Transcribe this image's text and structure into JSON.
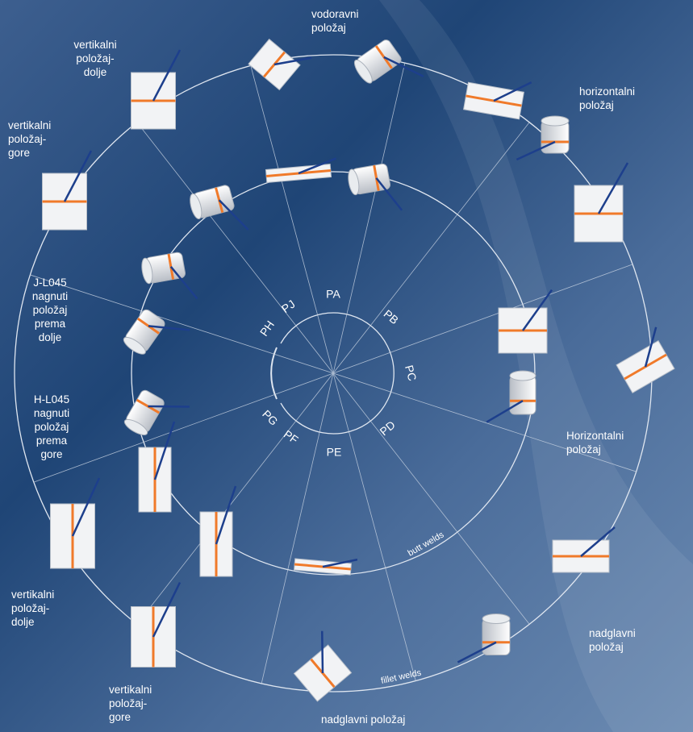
{
  "labels": [
    {
      "lines": [
        "vodoravni",
        "položaj"
      ]
    },
    {
      "lines": [
        "vertikalni",
        "položaj-",
        "dolje"
      ]
    },
    {
      "lines": [
        "horizontalni",
        "položaj"
      ]
    },
    {
      "lines": [
        "vertikalni",
        "položaj-",
        "gore"
      ]
    },
    {
      "lines": [
        "J-L045",
        "nagnuti",
        "položaj",
        "prema",
        "dolje"
      ]
    },
    {
      "lines": [
        "H-L045",
        "nagnuti",
        "položaj",
        "prema",
        "gore"
      ]
    },
    {
      "lines": [
        "Horizontalni",
        "položaj"
      ]
    },
    {
      "lines": [
        "vertikalni",
        "položaj-",
        "dolje"
      ]
    },
    {
      "lines": [
        "vertikalni",
        "položaj-",
        "gore"
      ]
    },
    {
      "lines": [
        "nadglavni položaj"
      ]
    },
    {
      "lines": [
        "nadglavni",
        "položaj"
      ]
    }
  ],
  "codes": [
    "PA",
    "PB",
    "PC",
    "PD",
    "PE",
    "PF",
    "PG",
    "PH",
    "PJ"
  ],
  "weld_types": {
    "butt": "butt welds",
    "fillet": "fillet welds"
  }
}
